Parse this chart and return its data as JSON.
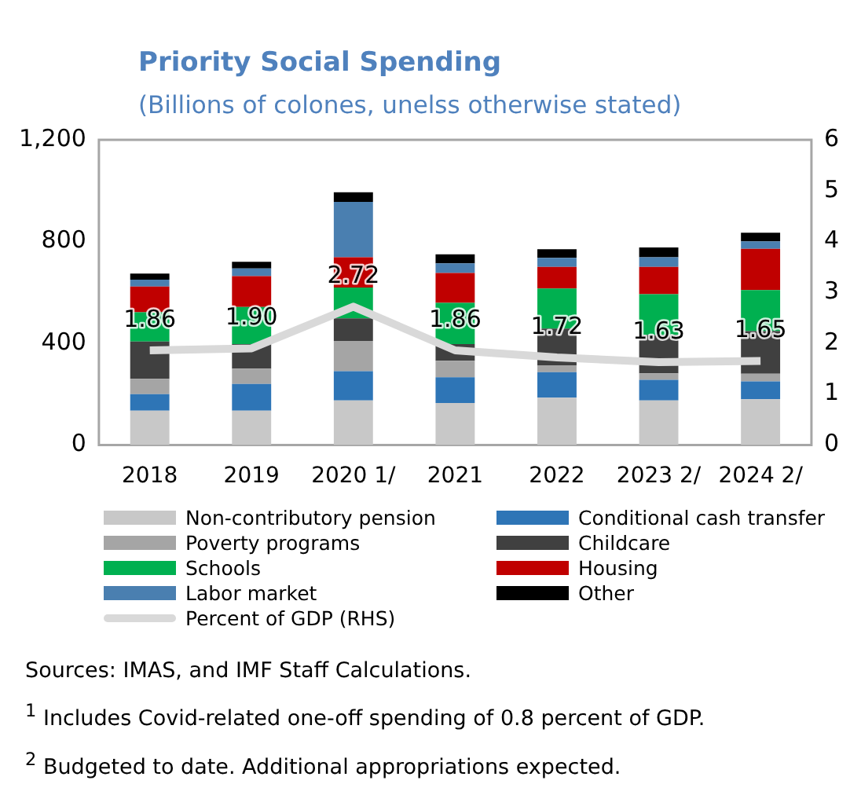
{
  "chart_data": {
    "type": "bar",
    "title": "Priority Social Spending",
    "subtitle": "(Billions of colones, unelss otherwise stated)",
    "stacked": true,
    "categories": [
      "2018",
      "2019",
      "2020 1/",
      "2021",
      "2022",
      "2023 2/",
      "2024 2/"
    ],
    "series": [
      {
        "name": "Non-contributory pension",
        "color": "#c8c8c8",
        "values": [
          135,
          135,
          175,
          165,
          186,
          175,
          180
        ]
      },
      {
        "name": "Conditional cash transfer",
        "color": "#2e75b6",
        "values": [
          65,
          105,
          115,
          101,
          100,
          81,
          70
        ]
      },
      {
        "name": "Poverty programs",
        "color": "#a5a5a5",
        "values": [
          60,
          60,
          119,
          65,
          27,
          26,
          30
        ]
      },
      {
        "name": "Childcare",
        "color": "#404040",
        "values": [
          147,
          97,
          89,
          66,
          145,
          150,
          168
        ]
      },
      {
        "name": "Schools",
        "color": "#00b050",
        "values": [
          115,
          146,
          121,
          162,
          157,
          161,
          161
        ]
      },
      {
        "name": "Housing",
        "color": "#c00000",
        "values": [
          101,
          121,
          119,
          117,
          85,
          107,
          162
        ]
      },
      {
        "name": "Labor market",
        "color": "#4a7fb0",
        "values": [
          27,
          30,
          218,
          38,
          36,
          38,
          30
        ]
      },
      {
        "name": "Other",
        "color": "#000000",
        "values": [
          24,
          26,
          38,
          36,
          34,
          39,
          34
        ]
      },
      {
        "name": "Percent of GDP (RHS)",
        "type": "line",
        "axis": "y2",
        "color": "#d9d9d9",
        "values": [
          1.86,
          1.9,
          2.72,
          1.86,
          1.72,
          1.63,
          1.65
        ],
        "value_labels": [
          "1.86",
          "1.90",
          "2.72",
          "1.86",
          "1.72",
          "1.63",
          "1.65"
        ]
      }
    ],
    "ylim": [
      0,
      1200
    ],
    "yticks": [
      0,
      {
        "value": 400,
        "label": "400"
      },
      {
        "value": 800,
        "label": "800"
      },
      {
        "value": 1200,
        "label": "1,200"
      }
    ],
    "y2lim": [
      0,
      6
    ],
    "y2ticks": [
      0,
      1,
      2,
      3,
      4,
      5,
      6
    ],
    "legend": "bottom",
    "grid": false,
    "marker": "none",
    "annotations": [
      "Sources: IMAS, and IMF Staff Calculations.",
      "$^{1}$ Includes Covid-related one-off spending of 0.8 percent of GDP.",
      "$^{2}$ Budgeted to date. Additional appropriations expected."
    ]
  }
}
